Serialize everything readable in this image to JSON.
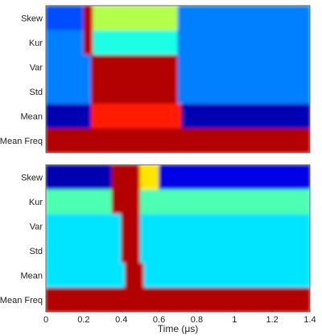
{
  "chart_data": [
    {
      "type": "heatmap",
      "rows": [
        "Skew",
        "Kur",
        "Var",
        "Std",
        "Mean",
        "Mean Freq"
      ],
      "x_range": [
        0,
        1.4
      ],
      "x_unit": "μs",
      "colormap": "jet",
      "value_range": [
        0,
        1
      ],
      "bands": [
        {
          "row": "Skew",
          "segments": [
            [
              0.0,
              0.2,
              0.2
            ],
            [
              0.2,
              0.25,
              0.95
            ],
            [
              0.25,
              0.7,
              0.55
            ],
            [
              0.7,
              1.4,
              0.25
            ]
          ]
        },
        {
          "row": "Kur",
          "segments": [
            [
              0.0,
              0.2,
              0.25
            ],
            [
              0.2,
              0.25,
              0.95
            ],
            [
              0.25,
              0.7,
              0.4
            ],
            [
              0.7,
              1.4,
              0.25
            ]
          ]
        },
        {
          "row": "Var",
          "segments": [
            [
              0.0,
              0.24,
              0.25
            ],
            [
              0.24,
              0.7,
              0.95
            ],
            [
              0.7,
              1.4,
              0.25
            ]
          ]
        },
        {
          "row": "Std",
          "segments": [
            [
              0.0,
              0.24,
              0.25
            ],
            [
              0.24,
              0.7,
              0.95
            ],
            [
              0.7,
              1.4,
              0.25
            ]
          ]
        },
        {
          "row": "Mean",
          "segments": [
            [
              0.0,
              0.24,
              0.05
            ],
            [
              0.24,
              0.72,
              0.85
            ],
            [
              0.72,
              1.4,
              0.05
            ]
          ]
        },
        {
          "row": "Mean Freq",
          "segments": [
            [
              0.0,
              1.4,
              0.95
            ]
          ]
        }
      ]
    },
    {
      "type": "heatmap",
      "rows": [
        "Skew",
        "Kur",
        "Var",
        "Std",
        "Mean",
        "Mean Freq"
      ],
      "x_range": [
        0,
        1.4
      ],
      "x_unit": "μs",
      "colormap": "jet",
      "value_range": [
        0,
        1
      ],
      "xticks": [
        "0",
        "0.2",
        "0.4",
        "0.6",
        "0.8",
        "1",
        "1.2",
        "1.4"
      ],
      "xlabel": "Time (μs)",
      "bands": [
        {
          "row": "Skew",
          "segments": [
            [
              0.0,
              0.35,
              0.05
            ],
            [
              0.35,
              0.5,
              0.95
            ],
            [
              0.5,
              0.6,
              0.65
            ],
            [
              0.6,
              1.4,
              0.1
            ]
          ]
        },
        {
          "row": "Kur",
          "segments": [
            [
              0.0,
              0.35,
              0.45
            ],
            [
              0.35,
              0.5,
              0.95
            ],
            [
              0.5,
              1.4,
              0.45
            ]
          ]
        },
        {
          "row": "Var",
          "segments": [
            [
              0.0,
              0.4,
              0.35
            ],
            [
              0.4,
              0.5,
              0.95
            ],
            [
              0.5,
              1.4,
              0.35
            ]
          ]
        },
        {
          "row": "Std",
          "segments": [
            [
              0.0,
              0.4,
              0.35
            ],
            [
              0.4,
              0.5,
              0.95
            ],
            [
              0.5,
              1.4,
              0.35
            ]
          ]
        },
        {
          "row": "Mean",
          "segments": [
            [
              0.0,
              0.42,
              0.35
            ],
            [
              0.42,
              0.52,
              0.95
            ],
            [
              0.52,
              1.4,
              0.35
            ]
          ]
        },
        {
          "row": "Mean Freq",
          "segments": [
            [
              0.0,
              1.4,
              0.95
            ]
          ]
        }
      ]
    }
  ]
}
